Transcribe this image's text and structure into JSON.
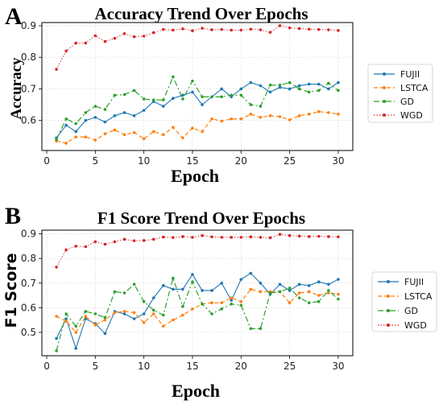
{
  "panels": [
    {
      "letter": "A",
      "legend": [
        "FUJII",
        "LSTCA",
        "GD",
        "WGD"
      ]
    },
    {
      "letter": "B",
      "legend": [
        "FUJII",
        "LSTCA",
        "GD",
        "WGD"
      ]
    }
  ],
  "colors": {
    "FUJII": "#1f77b4",
    "LSTCA": "#ff7f0e",
    "GD": "#2ca02c",
    "WGD": "#d62728"
  },
  "chart_data": [
    {
      "type": "line",
      "title": "Accuracy Trend Over Epochs",
      "xlabel": "Epoch",
      "ylabel": "Accuracy",
      "x": [
        1,
        2,
        3,
        4,
        5,
        6,
        7,
        8,
        9,
        10,
        11,
        12,
        13,
        14,
        15,
        16,
        17,
        18,
        19,
        20,
        21,
        22,
        23,
        24,
        25,
        26,
        27,
        28,
        29,
        30
      ],
      "xticks": [
        0,
        5,
        10,
        15,
        20,
        25,
        30
      ],
      "yticks": [
        0.6,
        0.7,
        0.8,
        0.9
      ],
      "xlim": [
        -0.5,
        31.5
      ],
      "ylim": [
        0.505,
        0.91
      ],
      "grid": true,
      "legend_position": "right-outside",
      "series": [
        {
          "name": "FUJII",
          "values": [
            0.545,
            0.585,
            0.565,
            0.6,
            0.61,
            0.595,
            0.615,
            0.625,
            0.615,
            0.632,
            0.66,
            0.645,
            0.67,
            0.68,
            0.69,
            0.65,
            0.675,
            0.7,
            0.675,
            0.7,
            0.72,
            0.71,
            0.69,
            0.705,
            0.7,
            0.71,
            0.715,
            0.715,
            0.7,
            0.72
          ]
        },
        {
          "name": "LSTCA",
          "values": [
            0.535,
            0.528,
            0.548,
            0.548,
            0.538,
            0.558,
            0.57,
            0.555,
            0.562,
            0.542,
            0.565,
            0.555,
            0.578,
            0.545,
            0.576,
            0.565,
            0.605,
            0.598,
            0.605,
            0.605,
            0.62,
            0.61,
            0.615,
            0.612,
            0.602,
            0.615,
            0.62,
            0.628,
            0.625,
            0.62
          ]
        },
        {
          "name": "GD",
          "values": [
            0.54,
            0.605,
            0.59,
            0.625,
            0.645,
            0.635,
            0.68,
            0.682,
            0.695,
            0.668,
            0.665,
            0.665,
            0.738,
            0.668,
            0.725,
            0.675,
            0.675,
            0.675,
            0.68,
            0.68,
            0.65,
            0.645,
            0.712,
            0.712,
            0.72,
            0.7,
            0.69,
            0.695,
            0.718,
            0.695
          ]
        },
        {
          "name": "WGD",
          "values": [
            0.762,
            0.82,
            0.845,
            0.845,
            0.868,
            0.85,
            0.86,
            0.875,
            0.865,
            0.867,
            0.878,
            0.888,
            0.886,
            0.89,
            0.884,
            0.892,
            0.887,
            0.888,
            0.886,
            0.886,
            0.889,
            0.887,
            0.879,
            0.9,
            0.893,
            0.891,
            0.889,
            0.888,
            0.887,
            0.885
          ]
        }
      ]
    },
    {
      "type": "line",
      "title": "F1 Score Trend Over Epochs",
      "xlabel": "Epoch",
      "ylabel": "F1 Score",
      "x": [
        1,
        2,
        3,
        4,
        5,
        6,
        7,
        8,
        9,
        10,
        11,
        12,
        13,
        14,
        15,
        16,
        17,
        18,
        19,
        20,
        21,
        22,
        23,
        24,
        25,
        26,
        27,
        28,
        29,
        30
      ],
      "xticks": [
        0,
        5,
        10,
        15,
        20,
        25,
        30
      ],
      "yticks": [
        0.5,
        0.6,
        0.7,
        0.8,
        0.9
      ],
      "xlim": [
        -0.5,
        31.5
      ],
      "ylim": [
        0.405,
        0.915
      ],
      "grid": true,
      "legend_position": "right-outside",
      "series": [
        {
          "name": "FUJII",
          "values": [
            0.475,
            0.555,
            0.435,
            0.555,
            0.535,
            0.495,
            0.585,
            0.575,
            0.555,
            0.575,
            0.64,
            0.69,
            0.675,
            0.675,
            0.735,
            0.67,
            0.67,
            0.7,
            0.63,
            0.715,
            0.74,
            0.7,
            0.655,
            0.695,
            0.67,
            0.695,
            0.69,
            0.705,
            0.695,
            0.715
          ]
        },
        {
          "name": "LSTCA",
          "values": [
            0.565,
            0.545,
            0.5,
            0.565,
            0.53,
            0.55,
            0.58,
            0.585,
            0.58,
            0.54,
            0.575,
            0.525,
            0.55,
            0.57,
            0.595,
            0.615,
            0.62,
            0.62,
            0.64,
            0.625,
            0.675,
            0.665,
            0.665,
            0.665,
            0.62,
            0.66,
            0.665,
            0.65,
            0.66,
            0.655
          ]
        },
        {
          "name": "GD",
          "values": [
            0.425,
            0.575,
            0.525,
            0.585,
            0.575,
            0.56,
            0.665,
            0.66,
            0.695,
            0.625,
            0.59,
            0.57,
            0.72,
            0.605,
            0.705,
            0.615,
            0.575,
            0.595,
            0.615,
            0.61,
            0.515,
            0.515,
            0.66,
            0.665,
            0.68,
            0.64,
            0.62,
            0.625,
            0.67,
            0.635
          ]
        },
        {
          "name": "WGD",
          "values": [
            0.765,
            0.835,
            0.85,
            0.848,
            0.868,
            0.858,
            0.868,
            0.878,
            0.872,
            0.873,
            0.878,
            0.887,
            0.885,
            0.889,
            0.886,
            0.893,
            0.888,
            0.886,
            0.886,
            0.886,
            0.888,
            0.886,
            0.884,
            0.898,
            0.893,
            0.891,
            0.889,
            0.89,
            0.889,
            0.888
          ]
        }
      ]
    }
  ]
}
